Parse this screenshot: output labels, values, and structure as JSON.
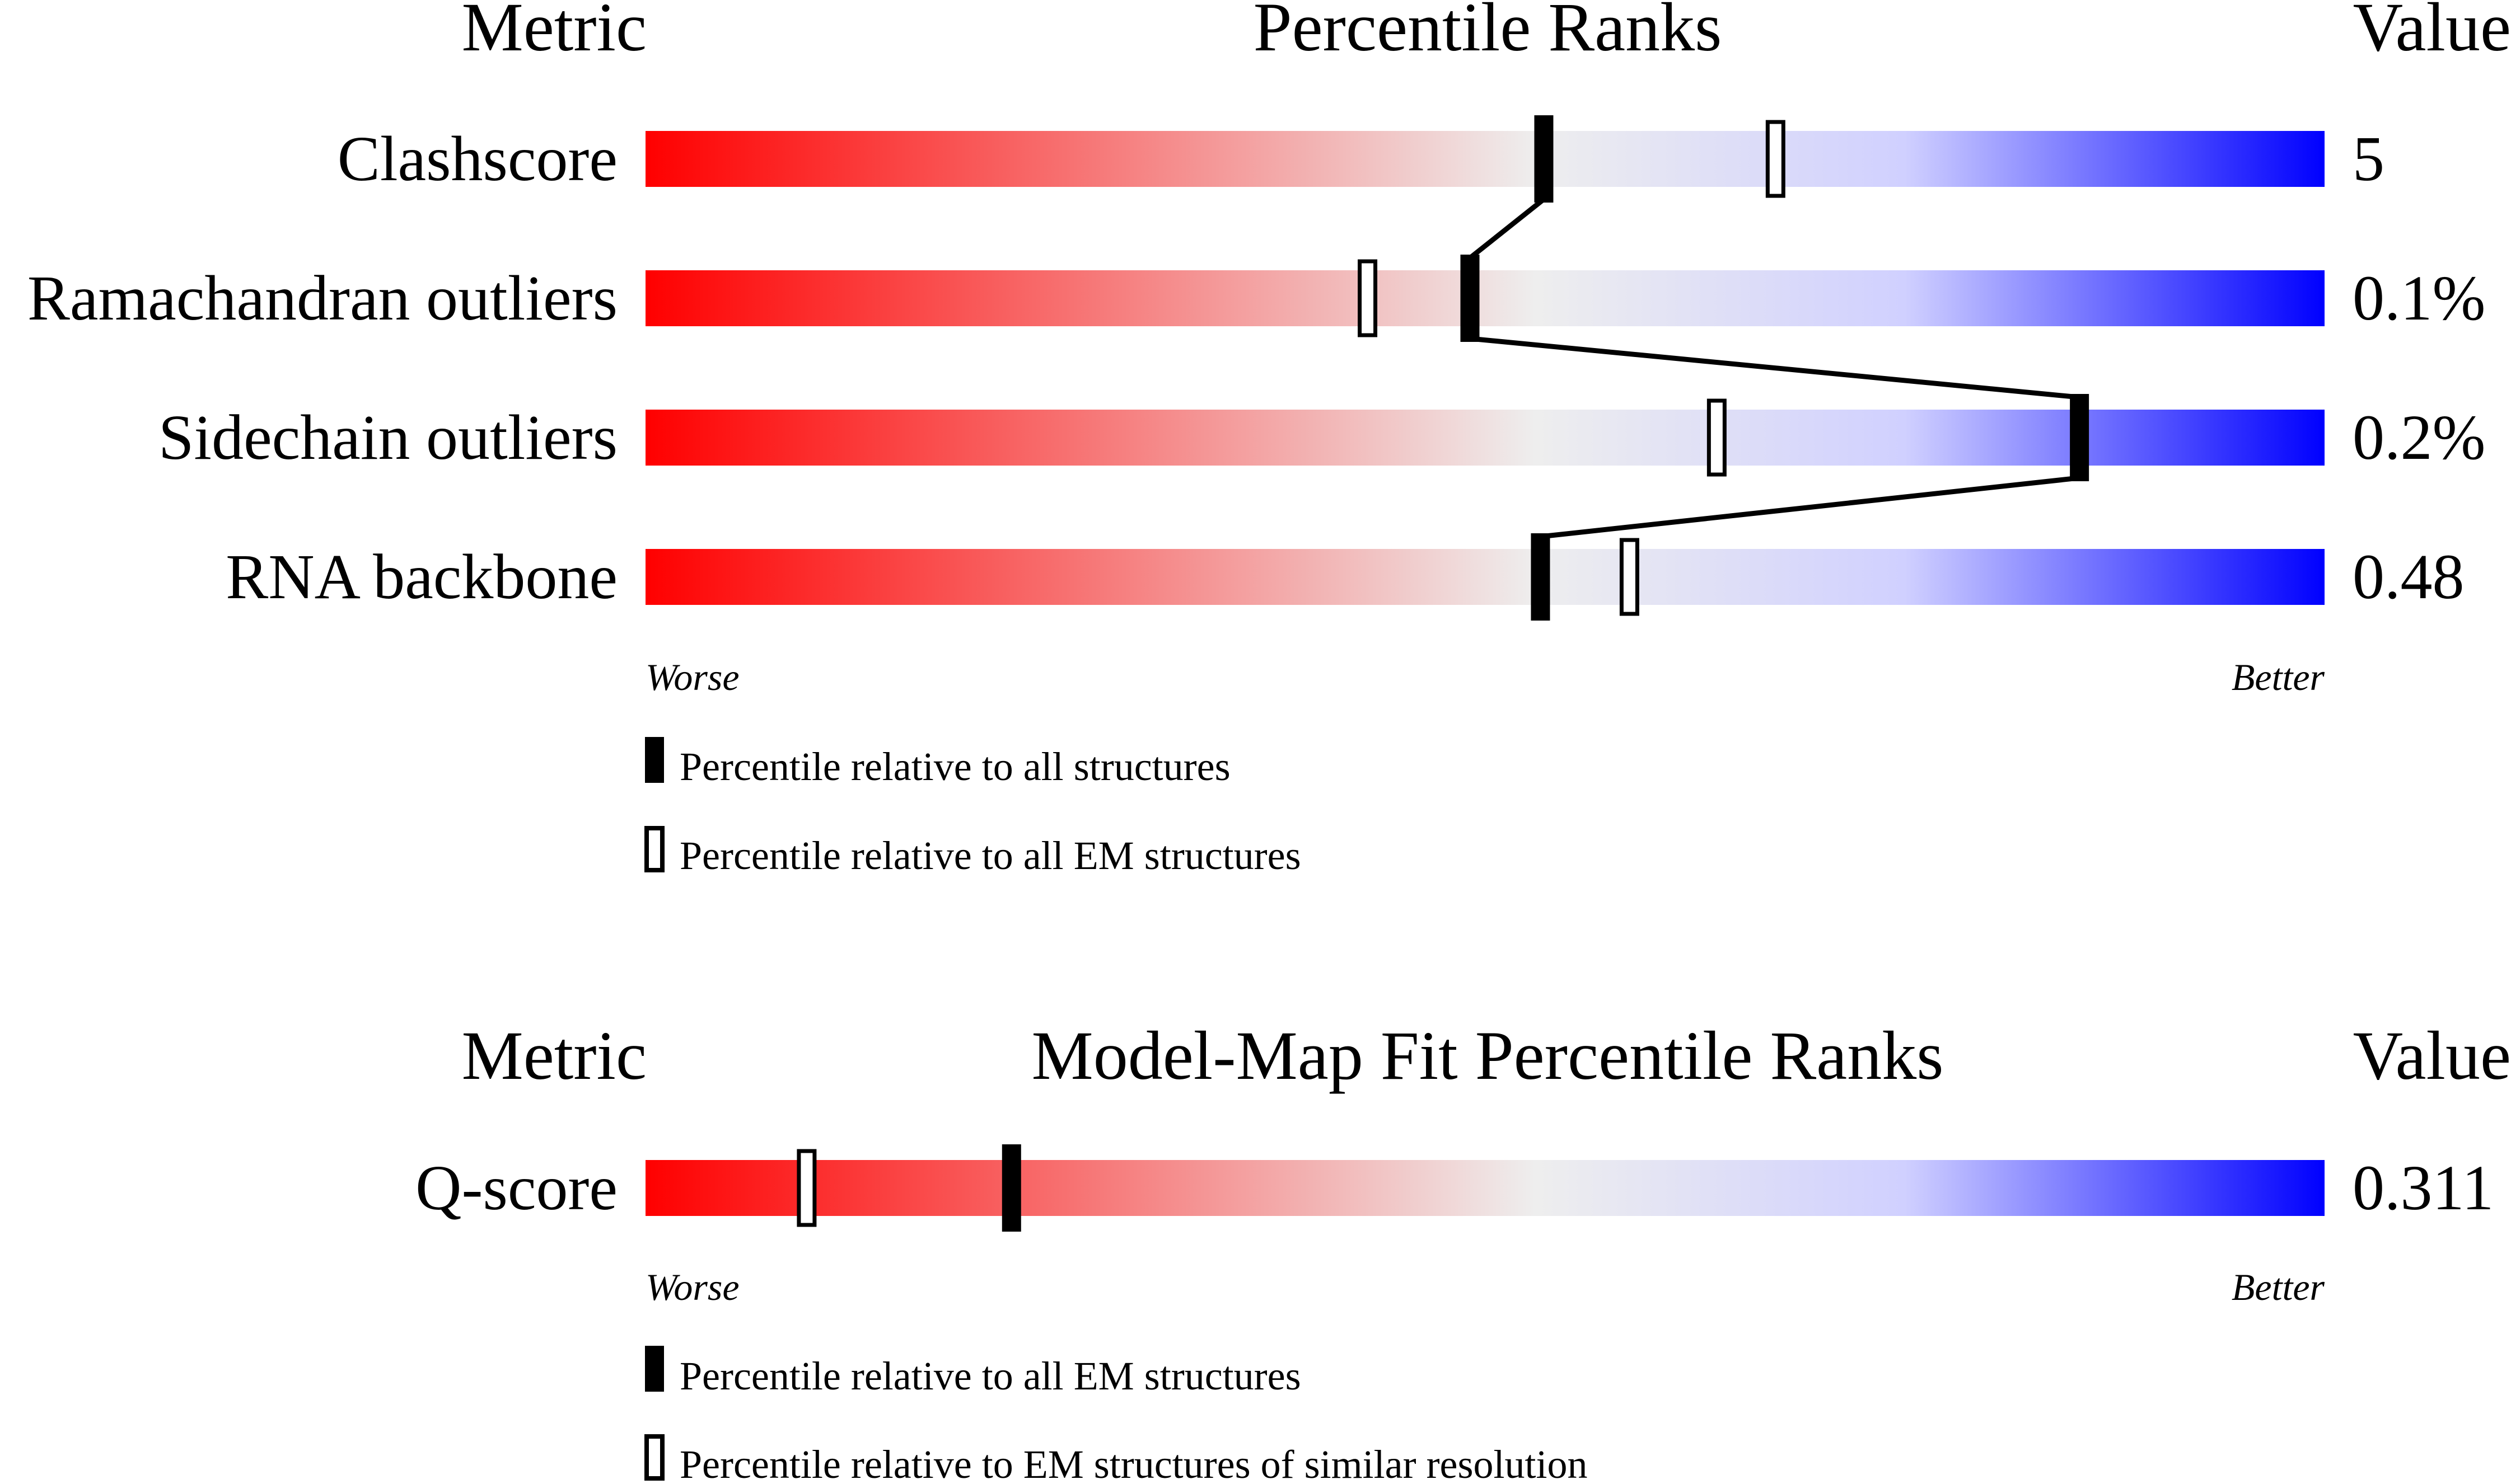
{
  "chart_data": [
    {
      "type": "bar",
      "headers": {
        "metric": "Metric",
        "title": "Percentile Ranks",
        "value": "Value"
      },
      "scale": {
        "min": 0,
        "max": 100,
        "low_label": "Worse",
        "high_label": "Better"
      },
      "colors": {
        "worse": "#ff0000",
        "mid": "#eeeeee",
        "better": "#0000ff"
      },
      "rows": [
        {
          "metric": "Clashscore",
          "value": "5",
          "all": 53.5,
          "em": 67.3
        },
        {
          "metric": "Ramachandran outliers",
          "value": "0.1%",
          "all": 49.1,
          "em": 43.0
        },
        {
          "metric": "Sidechain outliers",
          "value": "0.2%",
          "all": 85.4,
          "em": 63.8
        },
        {
          "metric": "RNA backbone",
          "value": "0.48",
          "all": 53.3,
          "em": 58.6
        }
      ],
      "legend": {
        "all": "Percentile relative to all structures",
        "em": "Percentile relative to all EM structures"
      }
    },
    {
      "type": "bar",
      "headers": {
        "metric": "Metric",
        "title": "Model-Map Fit Percentile Ranks",
        "value": "Value"
      },
      "scale": {
        "min": 0,
        "max": 100,
        "low_label": "Worse",
        "high_label": "Better"
      },
      "colors": {
        "worse": "#ff0000",
        "mid": "#eeeeee",
        "better": "#0000ff"
      },
      "rows": [
        {
          "metric": "Q-score",
          "value": "0.311",
          "all": 21.8,
          "em": 9.6
        }
      ],
      "legend": {
        "all": "Percentile relative to all EM structures",
        "em": "Percentile relative to EM structures of similar resolution"
      }
    }
  ]
}
